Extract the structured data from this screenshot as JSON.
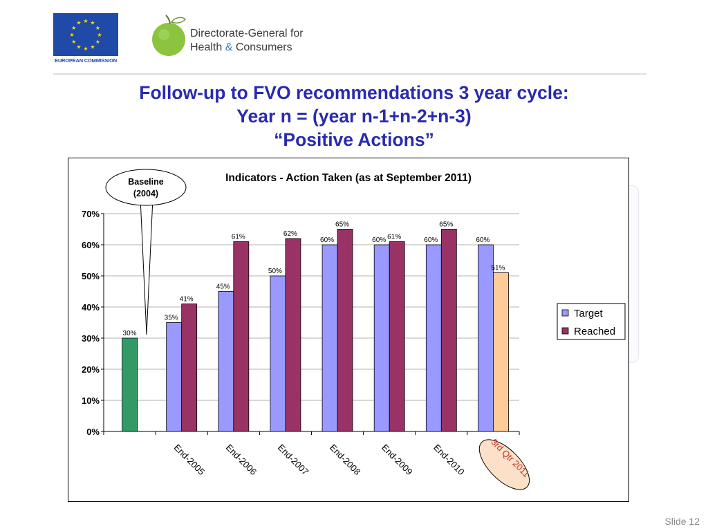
{
  "header": {
    "eu_caption": "EUROPEAN COMMISSION",
    "dg_line1": "Directorate-General for",
    "dg_line2_a": "Health",
    "dg_line2_amp": "&",
    "dg_line2_b": "Consumers"
  },
  "title": {
    "line1": "Follow-up to FVO recommendations 3 year cycle:",
    "line2": "Year n = (year n-1+n-2+n-3)",
    "line3": "“Positive Actions”"
  },
  "chart_data": {
    "type": "bar",
    "title": "Indicators - Action Taken (as at September 2011)",
    "categories": [
      "",
      "End-2005",
      "End-2006",
      "End-2007",
      "End-2008",
      "End-2009",
      "End-2010",
      "3rd Qtr 2011"
    ],
    "series": [
      {
        "name": "Target",
        "values": [
          30,
          35,
          45,
          50,
          60,
          60,
          60,
          60
        ],
        "labels": [
          "30%",
          "35%",
          "45%",
          "50%",
          "60%",
          "60%",
          "60%",
          "60%"
        ],
        "color": "#9999ff"
      },
      {
        "name": "Reached",
        "values": [
          null,
          41,
          61,
          62,
          65,
          61,
          65,
          51
        ],
        "labels": [
          "",
          "41%",
          "61%",
          "62%",
          "65%",
          "61%",
          "65%",
          "51%"
        ],
        "color": "#993366"
      }
    ],
    "special_colors": {
      "baseline_bar": "#339966",
      "q3_2011_reached": "#ffcc99"
    },
    "yticks": [
      "0%",
      "10%",
      "20%",
      "30%",
      "40%",
      "50%",
      "60%",
      "70%"
    ],
    "ylim": [
      0,
      70
    ],
    "grid": true,
    "legend_position": "right",
    "callouts": {
      "baseline_line1": "Baseline",
      "baseline_line2": "(2004)"
    }
  },
  "footer": {
    "slide_number": "Slide 12"
  }
}
